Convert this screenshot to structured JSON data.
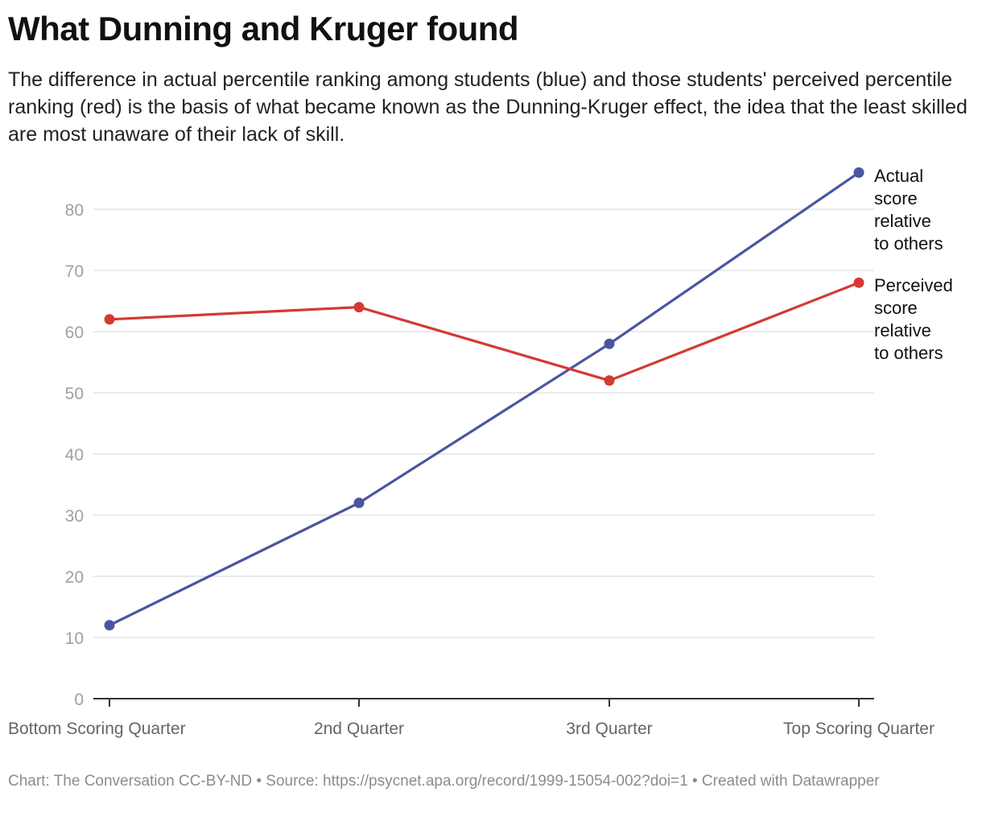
{
  "title": "What Dunning and Kruger found",
  "subtitle": "The difference in actual percentile ranking among students (blue) and those students' perceived percentile ranking (red) is the basis of what became known as the Dunning-Kruger effect, the idea that the least skilled are most unaware of their lack of skill.",
  "footer": "Chart: The Conversation CC-BY-ND • Source: https://psycnet.apa.org/record/1999-15054-002?doi=1 • Created with Datawrapper",
  "chart_data": {
    "type": "line",
    "title": "What Dunning and Kruger found",
    "subtitle": "The difference in actual percentile ranking among students (blue) and those students' perceived percentile ranking (red) is the basis of what became known as the Dunning-Kruger effect, the idea that the least skilled are most unaware of their lack of skill.",
    "xlabel": "",
    "ylabel": "",
    "categories": [
      "Bottom Scoring Quarter",
      "2nd Quarter",
      "3rd Quarter",
      "Top Scoring Quarter"
    ],
    "ylim": [
      0,
      86
    ],
    "yticks": [
      0,
      10,
      20,
      30,
      40,
      50,
      60,
      70,
      80
    ],
    "grid": true,
    "series": [
      {
        "name": "Actual score relative to others",
        "label_lines": [
          "Actual",
          "score",
          "relative",
          "to others"
        ],
        "values": [
          12,
          32,
          58,
          86
        ],
        "color": "#4a55a2"
      },
      {
        "name": "Perceived score relative to others",
        "label_lines": [
          "Perceived",
          "score",
          "relative",
          "to others"
        ],
        "values": [
          62,
          64,
          52,
          68
        ],
        "color": "#d43a33"
      }
    ]
  }
}
